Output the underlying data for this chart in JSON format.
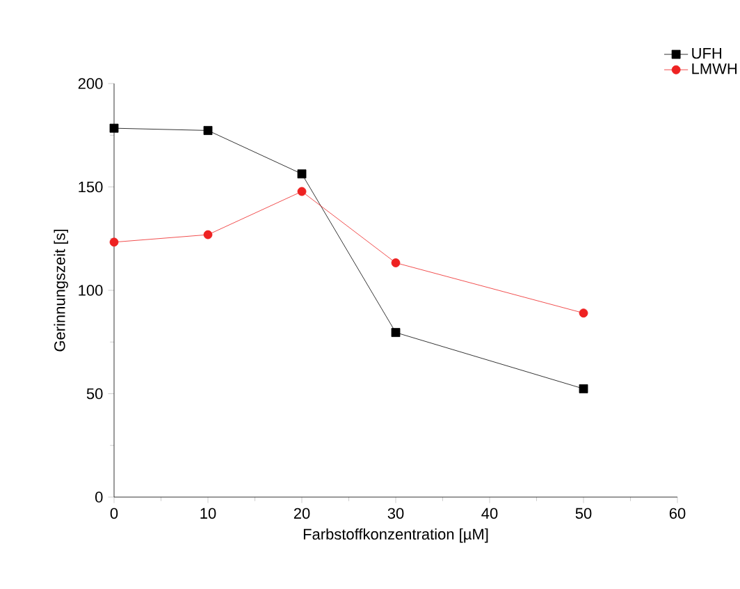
{
  "chart_data": {
    "type": "line",
    "xlabel": "Farbstoffkonzentration [µM]",
    "ylabel": "Gerinnungszeit [s]",
    "x": [
      0,
      10,
      20,
      30,
      50
    ],
    "series": [
      {
        "name": "UFH",
        "color": "#000000",
        "marker": "square",
        "values": [
          178.4,
          177.3,
          156.3,
          79.6,
          52.4
        ]
      },
      {
        "name": "LMWH",
        "color": "#ee2222",
        "marker": "circle",
        "values": [
          123.3,
          126.9,
          147.8,
          113.3,
          89.0
        ]
      }
    ],
    "xlim": [
      0,
      60
    ],
    "xticks": [
      0,
      10,
      20,
      30,
      40,
      50,
      60
    ],
    "ylim": [
      0,
      200
    ],
    "yticks": [
      0,
      50,
      100,
      150,
      200
    ],
    "legend": "top right",
    "line_style": "solid"
  }
}
